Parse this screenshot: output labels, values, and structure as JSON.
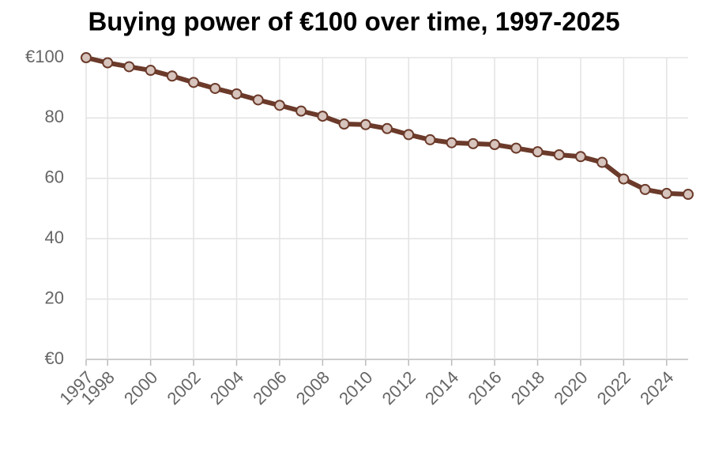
{
  "chart_data": {
    "type": "line",
    "title": "Buying power of €100 over time, 1997-2025",
    "x": [
      1997,
      1998,
      1999,
      2000,
      2001,
      2002,
      2003,
      2004,
      2005,
      2006,
      2007,
      2008,
      2009,
      2010,
      2011,
      2012,
      2013,
      2014,
      2015,
      2016,
      2017,
      2018,
      2019,
      2020,
      2021,
      2022,
      2023,
      2024,
      2025
    ],
    "series": [
      {
        "name": "Buying power",
        "color": "#6b3a2a",
        "values": [
          100,
          98.3,
          97,
          95.8,
          93.9,
          91.8,
          89.8,
          88,
          86,
          84.2,
          82.3,
          80.6,
          78,
          77.8,
          76.5,
          74.5,
          72.8,
          71.8,
          71.5,
          71.2,
          70,
          68.8,
          67.8,
          67.2,
          65.3,
          59.8,
          56.3,
          55,
          54.7
        ]
      }
    ],
    "xlim": [
      1997,
      2025
    ],
    "xticks": [
      1997,
      1998,
      2000,
      2002,
      2004,
      2006,
      2008,
      2010,
      2012,
      2014,
      2016,
      2018,
      2020,
      2022,
      2024
    ],
    "ylim": [
      0,
      100
    ],
    "yticks": [
      {
        "value": 0,
        "label": "€0"
      },
      20,
      40,
      60,
      80,
      {
        "value": 100,
        "label": "€100"
      }
    ],
    "grid": true
  }
}
